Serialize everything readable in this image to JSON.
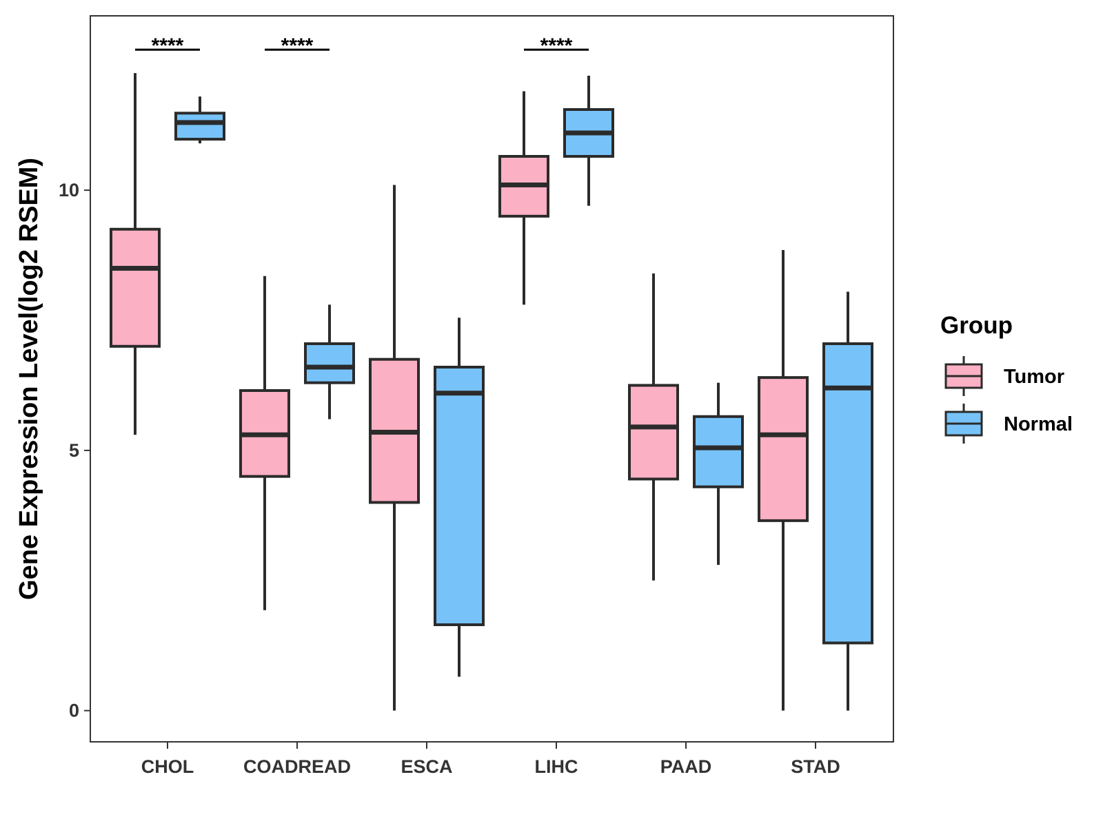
{
  "chart_data": {
    "type": "boxplot",
    "title": "",
    "xlabel": "",
    "ylabel": "Gene Expression Level(log2 RSEM)",
    "ylim": [
      -0.6,
      13.35
    ],
    "yticks": [
      0,
      5,
      10
    ],
    "ytick_labels": [
      "0",
      "5",
      "10"
    ],
    "grid": false,
    "categories": [
      "CHOL",
      "COADREAD",
      "ESCA",
      "LIHC",
      "PAAD",
      "STAD"
    ],
    "series": [
      {
        "name": "Tumor",
        "color": "#FBB0C3",
        "boxes": [
          {
            "whislo": 5.3,
            "q1": 7.0,
            "med": 8.5,
            "q3": 9.25,
            "whishi": 12.25
          },
          {
            "whislo": 1.93,
            "q1": 4.5,
            "med": 5.3,
            "q3": 6.15,
            "whishi": 8.35
          },
          {
            "whislo": 0.0,
            "q1": 4.0,
            "med": 5.35,
            "q3": 6.75,
            "whishi": 10.1
          },
          {
            "whislo": 7.8,
            "q1": 9.5,
            "med": 10.1,
            "q3": 10.65,
            "whishi": 11.9
          },
          {
            "whislo": 2.5,
            "q1": 4.45,
            "med": 5.45,
            "q3": 6.25,
            "whishi": 8.4
          },
          {
            "whislo": 0.0,
            "q1": 3.65,
            "med": 5.3,
            "q3": 6.4,
            "whishi": 8.85
          }
        ]
      },
      {
        "name": "Normal",
        "color": "#77C3F9",
        "boxes": [
          {
            "whislo": 10.9,
            "q1": 10.98,
            "med": 11.3,
            "q3": 11.48,
            "whishi": 11.8
          },
          {
            "whislo": 5.6,
            "q1": 6.3,
            "med": 6.6,
            "q3": 7.05,
            "whishi": 7.8
          },
          {
            "whislo": 0.65,
            "q1": 1.65,
            "med": 6.1,
            "q3": 6.6,
            "whishi": 7.55
          },
          {
            "whislo": 9.7,
            "q1": 10.65,
            "med": 11.1,
            "q3": 11.55,
            "whishi": 12.2
          },
          {
            "whislo": 2.8,
            "q1": 4.3,
            "med": 5.05,
            "q3": 5.65,
            "whishi": 6.3
          },
          {
            "whislo": 0.0,
            "q1": 1.3,
            "med": 6.2,
            "q3": 7.05,
            "whishi": 8.05
          }
        ]
      }
    ],
    "significance": [
      {
        "category": "CHOL",
        "label": "****",
        "y": 12.7
      },
      {
        "category": "COADREAD",
        "label": "****",
        "y": 12.7
      },
      {
        "category": "LIHC",
        "label": "****",
        "y": 12.7
      }
    ],
    "legend": {
      "title": "Group",
      "position": "right",
      "entries": [
        "Tumor",
        "Normal"
      ]
    },
    "colors": {
      "tumor": "#FBB0C3",
      "normal": "#77C3F9",
      "outline": "#2B2B2B",
      "axis": "#333333"
    }
  }
}
